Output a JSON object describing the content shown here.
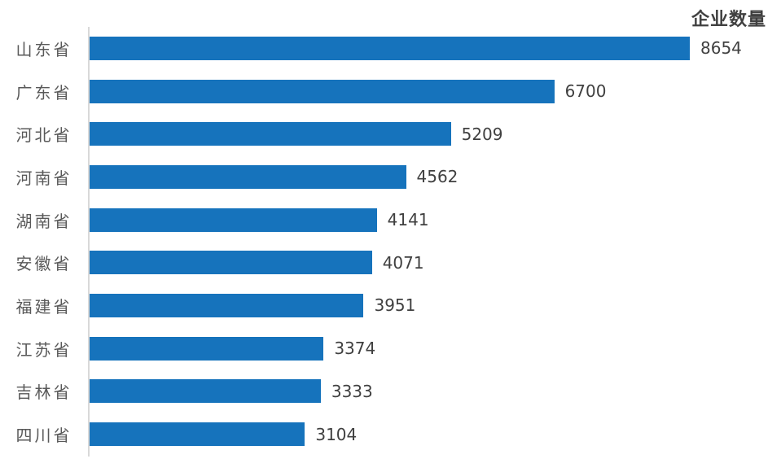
{
  "chart_data": {
    "type": "bar",
    "orientation": "horizontal",
    "title": "企业数量",
    "categories": [
      "山东省",
      "广东省",
      "河北省",
      "河南省",
      "湖南省",
      "安徽省",
      "福建省",
      "江苏省",
      "吉林省",
      "四川省"
    ],
    "values": [
      8654,
      6700,
      5209,
      4562,
      4141,
      4071,
      3951,
      3374,
      3333,
      3104
    ],
    "xlim": [
      0,
      8654
    ],
    "grid": false,
    "legend_position": "none",
    "value_labels_shown": true,
    "bar_color": "#1673bc",
    "axis_line_color": "#d9d9d9",
    "category_label_color": "#595959",
    "value_label_color": "#404040",
    "title_color": "#404040"
  }
}
